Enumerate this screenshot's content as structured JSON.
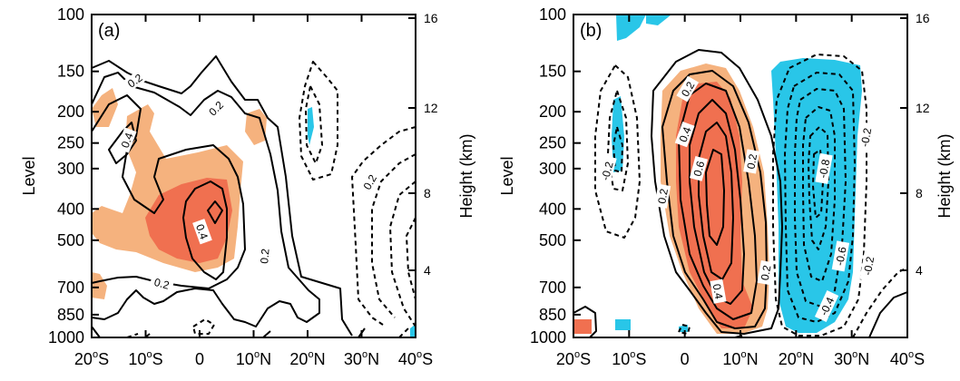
{
  "chart_data": [
    {
      "type": "contour",
      "panel_label": "(a)",
      "xlabel": "",
      "ylabel": "Level",
      "ylabel_right": "Height (km)",
      "x_ticks": [
        {
          "v": -20,
          "lat": "20",
          "hem": "S"
        },
        {
          "v": -10,
          "lat": "10",
          "hem": "S"
        },
        {
          "v": 0,
          "lat": "0",
          "hem": ""
        },
        {
          "v": 10,
          "lat": "10",
          "hem": "N"
        },
        {
          "v": 20,
          "lat": "20",
          "hem": "N"
        },
        {
          "v": 30,
          "lat": "30",
          "hem": "N"
        },
        {
          "v": 40,
          "lat": "40",
          "hem": "S"
        }
      ],
      "y_ticks": [
        "100",
        "150",
        "200",
        "250",
        "300",
        "400",
        "500",
        "700",
        "850",
        "1000"
      ],
      "y_right_ticks": [
        "4",
        "8",
        "12",
        "16"
      ],
      "shading_colors": {
        "positive_light": "#f5b27e",
        "positive_strong": "#f07050",
        "negative": "#29c6e8"
      },
      "contour_labels": [
        {
          "text": "0.2",
          "lon": -12,
          "p": 160,
          "rot": -35
        },
        {
          "text": "0.4",
          "lon": -13.5,
          "p": 245,
          "rot": -70
        },
        {
          "text": "0.2",
          "lon": 3,
          "p": 195,
          "rot": -45
        },
        {
          "text": "0.4",
          "lon": 0.5,
          "p": 470,
          "rot": 70
        },
        {
          "text": "0.2",
          "lon": -7,
          "p": 680,
          "rot": 15
        },
        {
          "text": "0.2",
          "lon": 12,
          "p": 560,
          "rot": -85
        },
        {
          "text": "0.2",
          "lon": 31.5,
          "p": 330,
          "rot": -60
        }
      ]
    },
    {
      "type": "contour",
      "panel_label": "(b)",
      "xlabel": "",
      "ylabel": "Level",
      "ylabel_right": "Height (km)",
      "x_ticks": [
        {
          "v": -20,
          "lat": "20",
          "hem": "S"
        },
        {
          "v": -10,
          "lat": "10",
          "hem": "S"
        },
        {
          "v": 0,
          "lat": "0",
          "hem": ""
        },
        {
          "v": 10,
          "lat": "10",
          "hem": "N"
        },
        {
          "v": 20,
          "lat": "20",
          "hem": "N"
        },
        {
          "v": 30,
          "lat": "30",
          "hem": "N"
        },
        {
          "v": 40,
          "lat": "40",
          "hem": "S"
        }
      ],
      "y_ticks": [
        "100",
        "150",
        "200",
        "250",
        "300",
        "400",
        "500",
        "700",
        "850",
        "1000"
      ],
      "y_right_ticks": [
        "4",
        "8",
        "12",
        "16"
      ],
      "shading_colors": {
        "positive_light": "#f5b27e",
        "positive_strong": "#f07050",
        "negative": "#29c6e8"
      },
      "contour_labels": [
        {
          "text": "0.2",
          "lon": 0.5,
          "p": 170,
          "rot": -60
        },
        {
          "text": "0.4",
          "lon": 0,
          "p": 235,
          "rot": -70
        },
        {
          "text": "0.6",
          "lon": 2.5,
          "p": 300,
          "rot": -75
        },
        {
          "text": "-0.2",
          "lon": -14,
          "p": 305,
          "rot": -75
        },
        {
          "text": "0.2",
          "lon": -4,
          "p": 365,
          "rot": -80
        },
        {
          "text": "0.2",
          "lon": 12,
          "p": 285,
          "rot": -80
        },
        {
          "text": "0.2",
          "lon": 14.5,
          "p": 630,
          "rot": -80
        },
        {
          "text": "0.4",
          "lon": 6,
          "p": 720,
          "rot": 80
        },
        {
          "text": "-0.8",
          "lon": 25,
          "p": 300,
          "rot": -80
        },
        {
          "text": "-0.2",
          "lon": 32.5,
          "p": 240,
          "rot": -80
        },
        {
          "text": "-0.6",
          "lon": 28,
          "p": 560,
          "rot": -80
        },
        {
          "text": "-0.2",
          "lon": 33,
          "p": 600,
          "rot": -80
        },
        {
          "text": "-0.4",
          "lon": 25.5,
          "p": 800,
          "rot": -65
        }
      ]
    }
  ]
}
